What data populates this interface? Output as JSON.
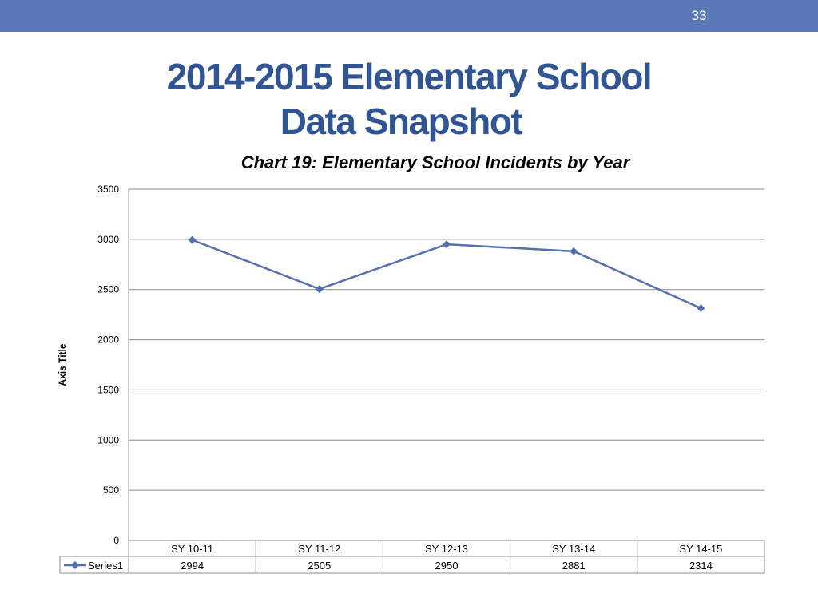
{
  "slide_number": "33",
  "title": {
    "line1": "2014-2015  Elementary School",
    "line2": "Data Snapshot"
  },
  "colors": {
    "band": "#5b78b8",
    "title": "#2f5597",
    "series": "#5470b0",
    "grid": "#8c8c8c"
  },
  "chart_data": {
    "type": "line",
    "title": "Chart 19: Elementary School Incidents by Year",
    "xlabel": "",
    "ylabel": "Axis Title",
    "ylim": [
      0,
      3500
    ],
    "yticks": [
      0,
      500,
      1000,
      1500,
      2000,
      2500,
      3000,
      3500
    ],
    "grid": true,
    "marker": "diamond",
    "categories": [
      "SY 10-11",
      "SY 11-12",
      "SY 12-13",
      "SY 13-14",
      "SY 14-15"
    ],
    "series": [
      {
        "name": "Series1",
        "values": [
          2994,
          2505,
          2950,
          2881,
          2314
        ]
      }
    ],
    "data_table": true
  }
}
